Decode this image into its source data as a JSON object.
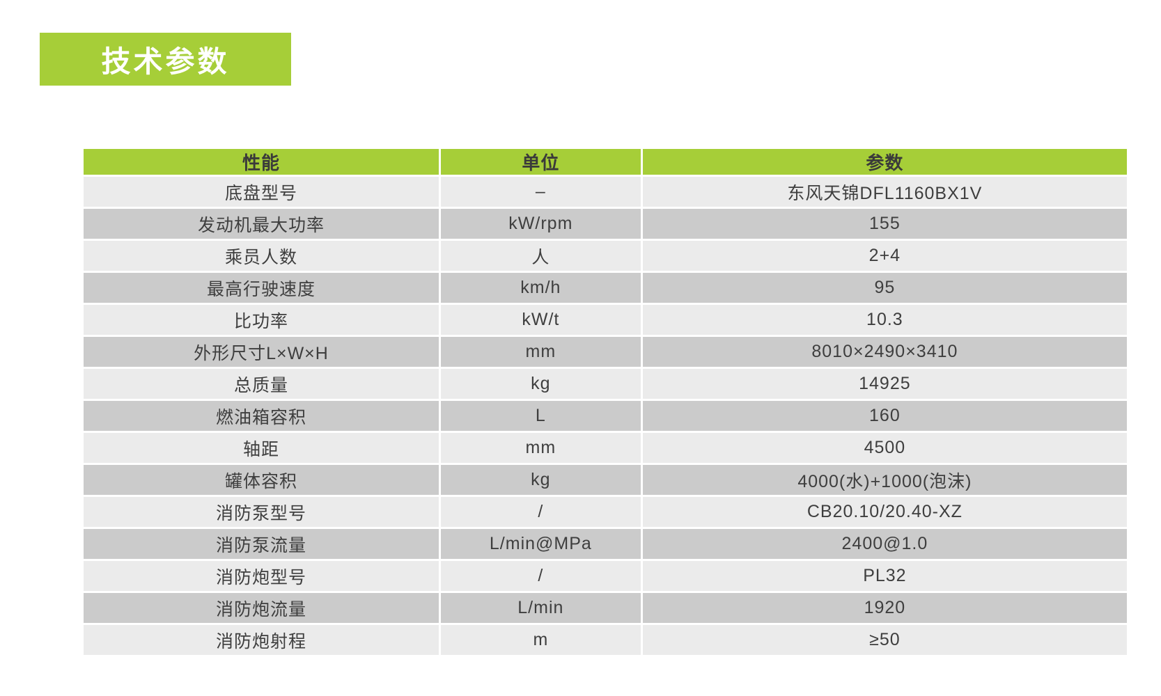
{
  "page": {
    "title": "技术参数"
  },
  "colors": {
    "accent_green": "#a6ce38",
    "row_light": "#ebebeb",
    "row_dark": "#cbcbcb",
    "text": "#3e3e3e"
  },
  "table": {
    "headers": [
      "性能",
      "单位",
      "参数"
    ],
    "rows": [
      [
        "底盘型号",
        "–",
        "东风天锦DFL1160BX1V"
      ],
      [
        "发动机最大功率",
        "kW/rpm",
        "155"
      ],
      [
        "乘员人数",
        "人",
        "2+4"
      ],
      [
        "最高行驶速度",
        "km/h",
        "95"
      ],
      [
        "比功率",
        "kW/t",
        "10.3"
      ],
      [
        "外形尺寸L×W×H",
        "mm",
        "8010×2490×3410"
      ],
      [
        "总质量",
        "kg",
        "14925"
      ],
      [
        "燃油箱容积",
        "L",
        "160"
      ],
      [
        "轴距",
        "mm",
        "4500"
      ],
      [
        "罐体容积",
        "kg",
        "4000(水)+1000(泡沫)"
      ],
      [
        "消防泵型号",
        "/",
        "CB20.10/20.40-XZ"
      ],
      [
        "消防泵流量",
        "L/min@MPa",
        "2400@1.0"
      ],
      [
        "消防炮型号",
        "/",
        "PL32"
      ],
      [
        "消防炮流量",
        "L/min",
        "1920"
      ],
      [
        "消防炮射程",
        "m",
        "≥50"
      ]
    ]
  }
}
